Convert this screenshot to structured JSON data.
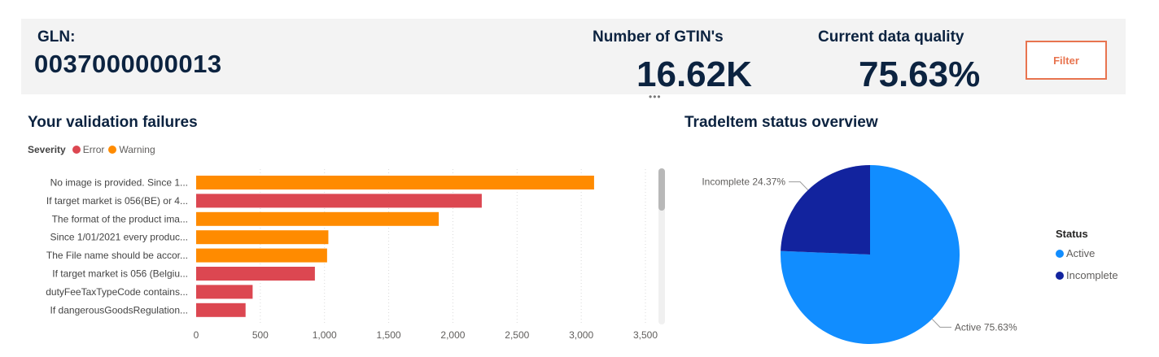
{
  "header": {
    "gln_label": "GLN:",
    "gln_value": "0037000000013",
    "kpis": [
      {
        "label": "Number of GTIN's",
        "value": "16.62K"
      },
      {
        "label": "Current data quality",
        "value": "75.63%"
      }
    ],
    "filter_label": "Filter",
    "drag_handle": "•••"
  },
  "colors": {
    "error": "#dc4751",
    "warning": "#ff8b00",
    "active": "#118dff",
    "incomplete": "#12239e",
    "filter_accent": "#e8744f",
    "title": "#0c2340"
  },
  "chart_data": [
    {
      "type": "bar",
      "orientation": "horizontal",
      "title": "Your validation failures",
      "legend": {
        "title": "Severity",
        "items": [
          "Error",
          "Warning"
        ],
        "position": "top-left"
      },
      "categories": [
        "No image is provided. Since 1...",
        "If target market is 056(BE) or 4...",
        "The format of the product ima...",
        "Since 1/01/2021 every produc...",
        "The File name should be accor...",
        "If target market is 056 (Belgiu...",
        "dutyFeeTaxTypeCode contains...",
        "If dangerousGoodsRegulation..."
      ],
      "values": [
        3100,
        2225,
        1890,
        1030,
        1020,
        925,
        440,
        385
      ],
      "severity": [
        "Warning",
        "Error",
        "Warning",
        "Warning",
        "Warning",
        "Error",
        "Error",
        "Error"
      ],
      "x_ticks": [
        "0",
        "500",
        "1,000",
        "1,500",
        "2,000",
        "2,500",
        "3,000",
        "3,500"
      ],
      "xlim": [
        0,
        3500
      ],
      "grid": true
    },
    {
      "type": "pie",
      "title": "TradeItem status overview",
      "legend": {
        "title": "Status",
        "items": [
          "Active",
          "Incomplete"
        ],
        "position": "right"
      },
      "slices": [
        {
          "label": "Active",
          "value": 75.63,
          "display": "Active 75.63%"
        },
        {
          "label": "Incomplete",
          "value": 24.37,
          "display": "Incomplete 24.37%"
        }
      ]
    }
  ]
}
